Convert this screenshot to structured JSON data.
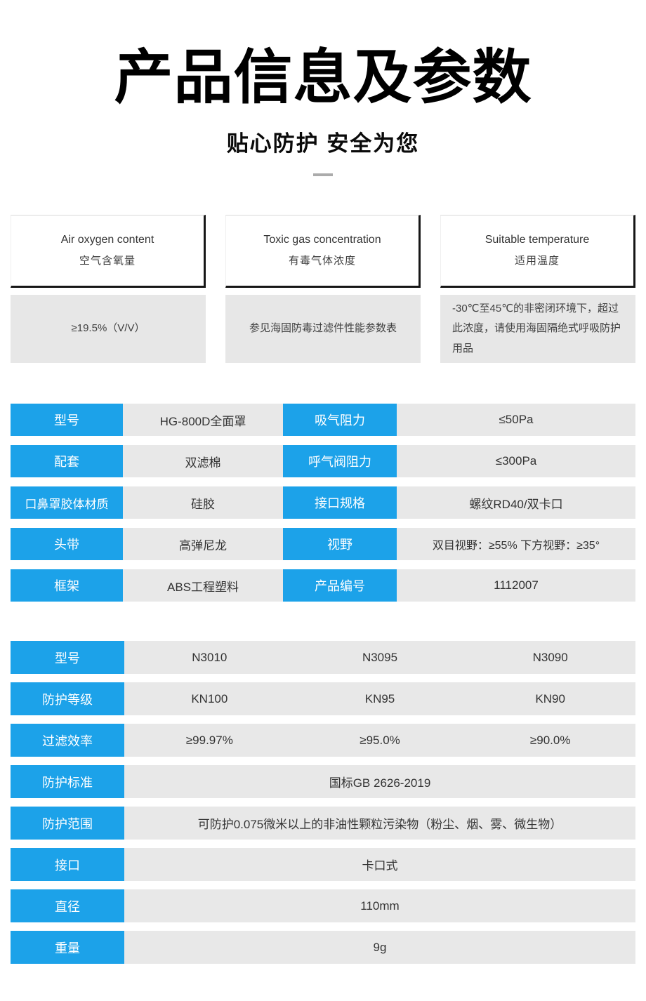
{
  "colors": {
    "accent_blue": "#1ca2e9",
    "cell_gray": "#e8e8e8",
    "shadow_black": "#161616"
  },
  "header": {
    "title": "产品信息及参数",
    "subtitle": "贴心防护 安全为您"
  },
  "info_cards": [
    {
      "title_en": "Air oxygen content",
      "title_zh": "空气含氧量",
      "value": "≥19.5%（V/V）"
    },
    {
      "title_en": "Toxic gas concentration",
      "title_zh": "有毒气体浓度",
      "value": "参见海固防毒过滤件性能参数表"
    },
    {
      "title_en": "Suitable temperature",
      "title_zh": "适用温度",
      "value": "-30℃至45℃的非密闭环境下，超过此浓度，请使用海固隔绝式呼吸防护用品"
    }
  ],
  "spec_table": {
    "rows": [
      {
        "label1": "型号",
        "value1": "HG-800D全面罩",
        "label2": "吸气阻力",
        "value2": "≤50Pa"
      },
      {
        "label1": "配套",
        "value1": "双滤棉",
        "label2": "呼气阀阻力",
        "value2": "≤300Pa"
      },
      {
        "label1": "口鼻罩胶体材质",
        "value1": "硅胶",
        "label2": "接口规格",
        "value2": "螺纹RD40/双卡口"
      },
      {
        "label1": "头带",
        "value1": "高弹尼龙",
        "label2": "视野",
        "value2": "双目视野：≥55% 下方视野：≥35°"
      },
      {
        "label1": "框架",
        "value1": "ABS工程塑料",
        "label2": "产品编号",
        "value2": "1112007"
      }
    ]
  },
  "filter_table": {
    "rows": [
      {
        "label": "型号",
        "values": [
          "N3010",
          "N3095",
          "N3090"
        ]
      },
      {
        "label": "防护等级",
        "values": [
          "KN100",
          "KN95",
          "KN90"
        ]
      },
      {
        "label": "过滤效率",
        "values": [
          "≥99.97%",
          "≥95.0%",
          "≥90.0%"
        ]
      },
      {
        "label": "防护标准",
        "values": [
          "国标GB 2626-2019"
        ]
      },
      {
        "label": "防护范围",
        "values": [
          "可防护0.075微米以上的非油性颗粒污染物（粉尘、烟、雾、微生物）"
        ]
      },
      {
        "label": "接口",
        "values": [
          "卡口式"
        ]
      },
      {
        "label": "直径",
        "values": [
          "110mm"
        ]
      },
      {
        "label": "重量",
        "values": [
          "9g"
        ]
      }
    ]
  }
}
